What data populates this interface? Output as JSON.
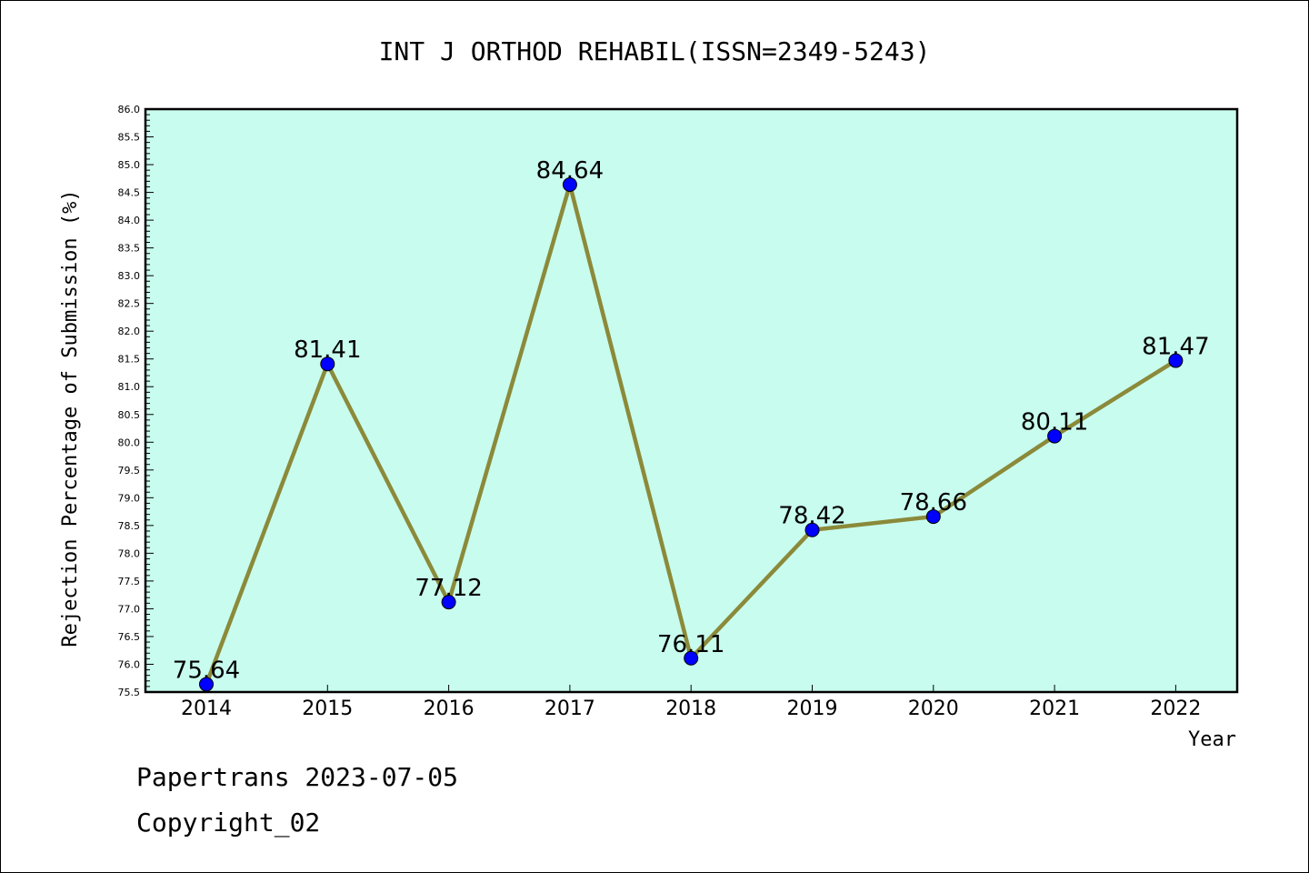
{
  "chart_data": {
    "type": "line",
    "title": "INT J ORTHOD REHABIL(ISSN=2349-5243)",
    "xlabel": "Year",
    "ylabel": "Rejection Percentage of Submission (%)",
    "categories": [
      "2014",
      "2015",
      "2016",
      "2017",
      "2018",
      "2019",
      "2020",
      "2021",
      "2022"
    ],
    "series": [
      {
        "values": [
          75.64,
          81.41,
          77.12,
          84.64,
          76.11,
          78.42,
          78.66,
          80.11,
          81.47
        ]
      }
    ],
    "data_labels": [
      "75.64",
      "81.41",
      "77.12",
      "84.64",
      "76.11",
      "78.42",
      "78.66",
      "80.11",
      "81.47"
    ],
    "ylim": [
      75.5,
      86.0
    ],
    "y_ticks": [
      "75.5",
      "76.0",
      "76.5",
      "77.0",
      "77.5",
      "78.0",
      "78.5",
      "79.0",
      "79.5",
      "80.0",
      "80.5",
      "81.0",
      "81.5",
      "82.0",
      "82.5",
      "83.0",
      "83.5",
      "84.0",
      "84.5",
      "85.0",
      "85.5",
      "86.0"
    ],
    "grid": false,
    "colors": {
      "plot_background": "#c8fcee",
      "line": "#8b8a3a",
      "marker": "#0000ff"
    }
  },
  "footer": {
    "line1": "Papertrans 2023-07-05",
    "line2": "Copyright_02"
  }
}
